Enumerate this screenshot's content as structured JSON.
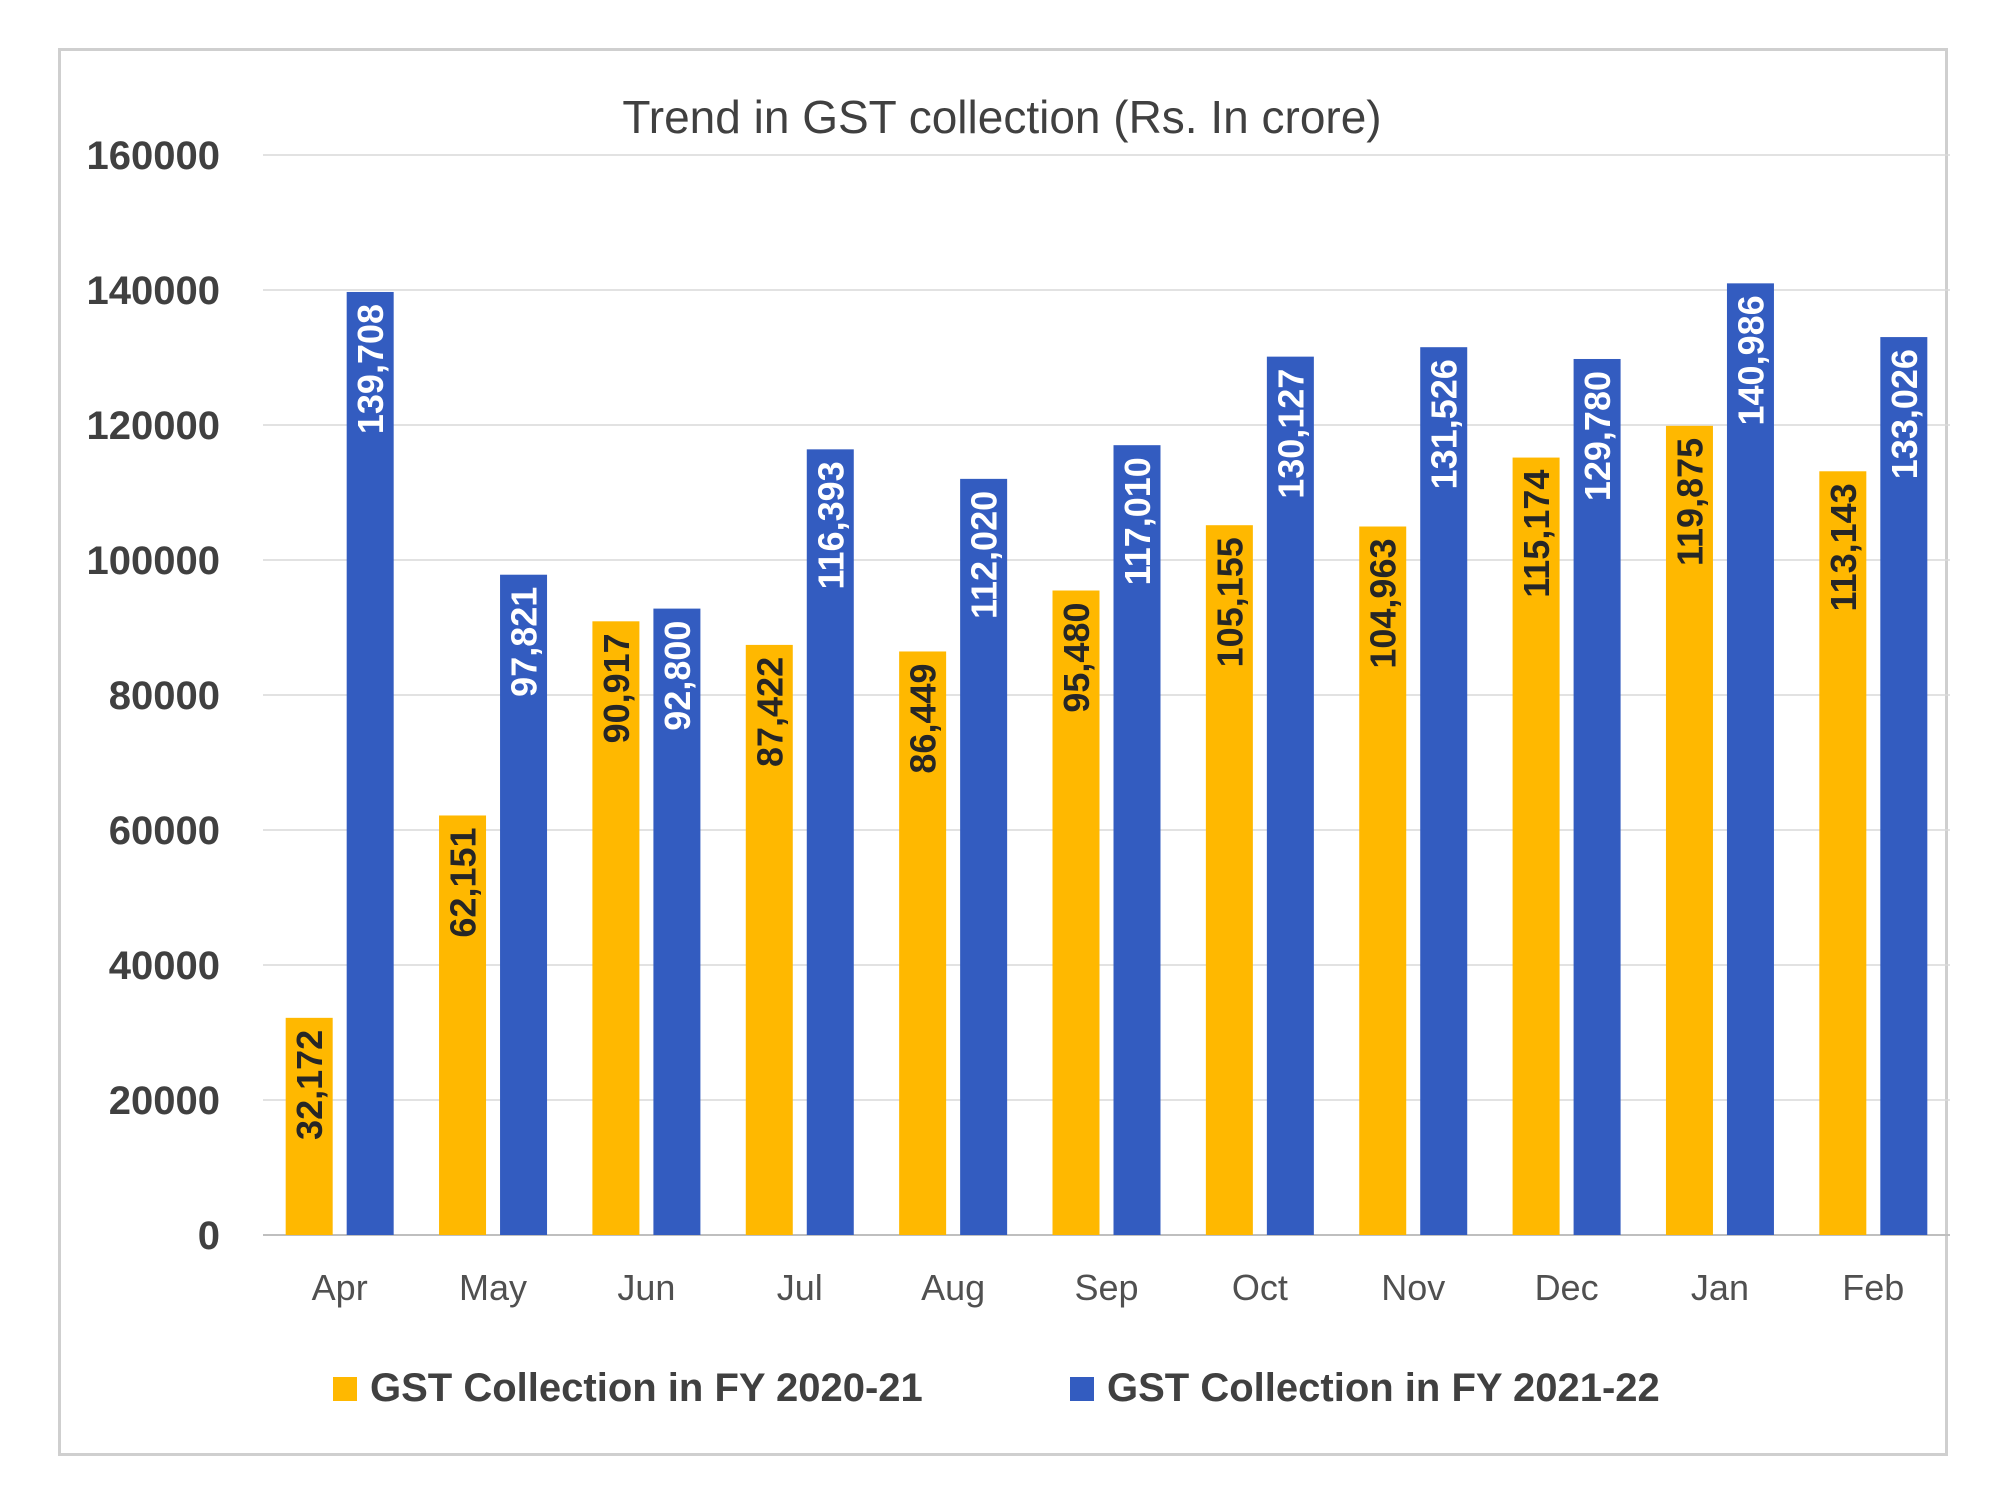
{
  "chart_data": {
    "type": "bar",
    "title": "Trend in GST collection (Rs. In crore)",
    "xlabel": "",
    "ylabel": "",
    "ylim": [
      0,
      160000
    ],
    "yticks": [
      0,
      20000,
      40000,
      60000,
      80000,
      100000,
      120000,
      140000,
      160000
    ],
    "ytick_labels": [
      "0",
      "20000",
      "40000",
      "60000",
      "80000",
      "100000",
      "120000",
      "140000",
      "160000"
    ],
    "grid": true,
    "legend": "bottom",
    "categories": [
      "Apr",
      "May",
      "Jun",
      "Jul",
      "Aug",
      "Sep",
      "Oct",
      "Nov",
      "Dec",
      "Jan",
      "Feb"
    ],
    "series": [
      {
        "name": "GST Collection in FY 2020-21",
        "color": "#FFB800",
        "label_color": "#262626",
        "values": [
          32172,
          62151,
          90917,
          87422,
          86449,
          95480,
          105155,
          104963,
          115174,
          119875,
          113143
        ],
        "labels": [
          "32,172",
          "62,151",
          "90,917",
          "87,422",
          "86,449",
          "95,480",
          "105,155",
          "104,963",
          "115,174",
          "119,875",
          "113,143"
        ]
      },
      {
        "name": "GST Collection in FY 2021-22",
        "color": "#335CC0",
        "label_color": "#ffffff",
        "values": [
          139708,
          97821,
          92800,
          116393,
          112020,
          117010,
          130127,
          131526,
          129780,
          140986,
          133026
        ],
        "labels": [
          "139,708",
          "97,821",
          "92,800",
          "116,393",
          "112,020",
          "117,010",
          "130,127",
          "131,526",
          "129,780",
          "140,986",
          "133,026"
        ]
      }
    ]
  }
}
